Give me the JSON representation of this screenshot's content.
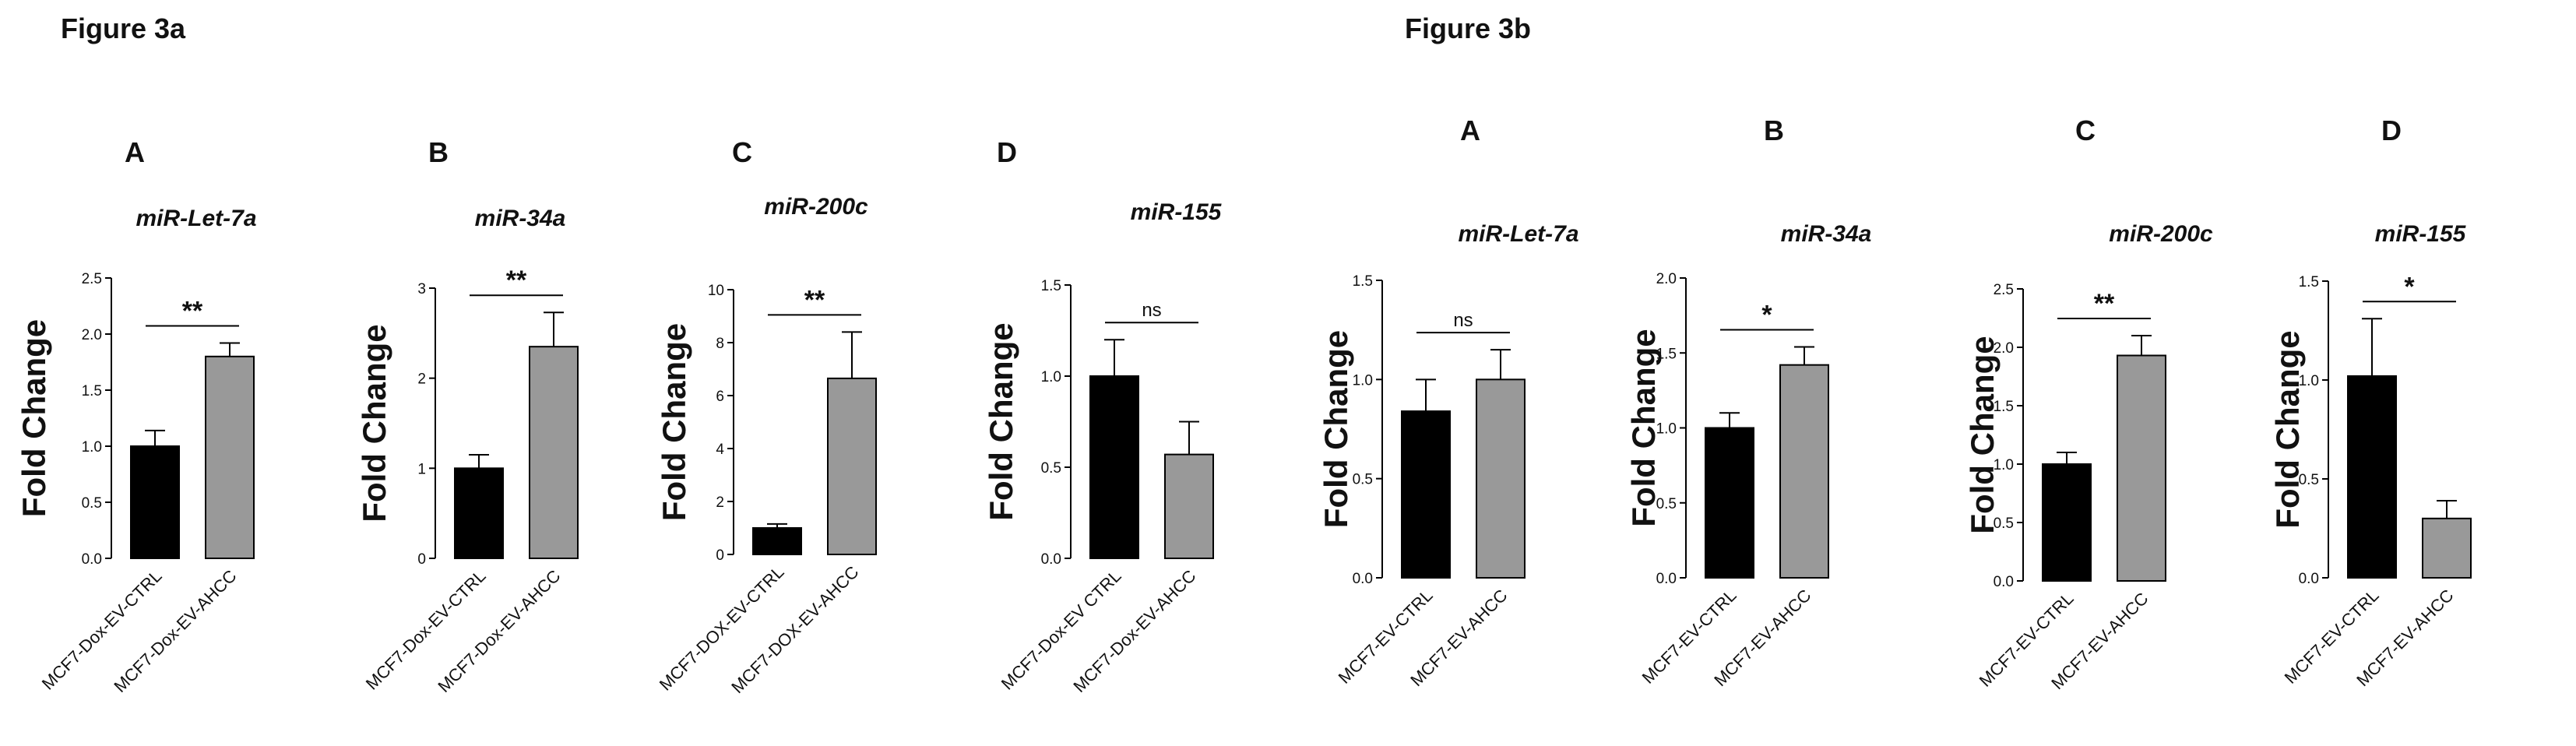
{
  "figures": {
    "fig3a_title": "Figure 3a",
    "fig3b_title": "Figure 3b"
  },
  "colors": {
    "ctrl_bar": "#000000",
    "ahcc_bar": "#999999",
    "axis": "#000000"
  },
  "chart_data": [
    {
      "type": "bar",
      "figure": "Figure 3a",
      "panel": "A",
      "title": "miR-Let-7a",
      "ylabel": "Fold Change",
      "ylim": [
        0,
        2.5
      ],
      "yticks": [
        "0.0",
        "0.5",
        "1.0",
        "1.5",
        "2.0",
        "2.5"
      ],
      "categories": [
        "MCF7-Dox-EV-CTRL",
        "MCF7-Dox-EV-AHCC"
      ],
      "values": [
        1.0,
        1.8
      ],
      "errors": [
        0.14,
        0.12
      ],
      "significance": "**"
    },
    {
      "type": "bar",
      "figure": "Figure 3a",
      "panel": "B",
      "title": "miR-34a",
      "ylabel": "Fold Change",
      "ylim": [
        0,
        3
      ],
      "yticks": [
        "0",
        "1",
        "2",
        "3"
      ],
      "categories": [
        "MCF7-Dox-EV-CTRL",
        "MCF7-Dox-EV-AHCC"
      ],
      "values": [
        1.0,
        2.35
      ],
      "errors": [
        0.15,
        0.38
      ],
      "significance": "**"
    },
    {
      "type": "bar",
      "figure": "Figure 3a",
      "panel": "C",
      "title": "miR-200c",
      "ylabel": "Fold Change",
      "ylim": [
        0,
        10
      ],
      "yticks": [
        "0",
        "2",
        "4",
        "6",
        "8",
        "10"
      ],
      "categories": [
        "MCF7-DOX-EV-CTRL",
        "MCF7-DOX-EV-AHCC"
      ],
      "values": [
        1.0,
        6.65
      ],
      "errors": [
        0.15,
        1.75
      ],
      "significance": "**"
    },
    {
      "type": "bar",
      "figure": "Figure 3a",
      "panel": "D",
      "title": "miR-155",
      "ylabel": "Fold Change",
      "ylim": [
        0,
        1.5
      ],
      "yticks": [
        "0.0",
        "0.5",
        "1.0",
        "1.5"
      ],
      "categories": [
        "MCF7-Dox-EV CTRL",
        "MCF7-Dox-EV-AHCC"
      ],
      "values": [
        1.0,
        0.57
      ],
      "errors": [
        0.2,
        0.18
      ],
      "significance": "ns"
    },
    {
      "type": "bar",
      "figure": "Figure 3b",
      "panel": "A",
      "title": "miR-Let-7a",
      "ylabel": "Fold Change",
      "ylim": [
        0,
        1.5
      ],
      "yticks": [
        "0.0",
        "0.5",
        "1.0",
        "1.5"
      ],
      "categories": [
        "MCF7-EV-CTRL",
        "MCF7-EV-AHCC"
      ],
      "values": [
        0.84,
        1.0
      ],
      "errors": [
        0.16,
        0.15
      ],
      "significance": "ns"
    },
    {
      "type": "bar",
      "figure": "Figure 3b",
      "panel": "B",
      "title": "miR-34a",
      "ylabel": "Fold Change",
      "ylim": [
        0,
        2.0
      ],
      "yticks": [
        "0.0",
        "0.5",
        "1.0",
        "1.5",
        "2.0"
      ],
      "categories": [
        "MCF7-EV-CTRL",
        "MCF7-EV-AHCC"
      ],
      "values": [
        1.0,
        1.42
      ],
      "errors": [
        0.1,
        0.12
      ],
      "significance": "*"
    },
    {
      "type": "bar",
      "figure": "Figure 3b",
      "panel": "C",
      "title": "miR-200c",
      "ylabel": "Fold Change",
      "ylim": [
        0,
        2.5
      ],
      "yticks": [
        "0.0",
        "0.5",
        "1.0",
        "1.5",
        "2.0",
        "2.5"
      ],
      "categories": [
        "MCF7-EV-CTRL",
        "MCF7-EV-AHCC"
      ],
      "values": [
        1.0,
        1.93
      ],
      "errors": [
        0.1,
        0.17
      ],
      "significance": "**"
    },
    {
      "type": "bar",
      "figure": "Figure 3b",
      "panel": "D",
      "title": "miR-155",
      "ylabel": "Fold Change",
      "ylim": [
        0,
        1.5
      ],
      "yticks": [
        "0.0",
        "0.5",
        "1.0",
        "1.5"
      ],
      "categories": [
        "MCF7-EV-CTRL",
        "MCF7-EV-AHCC"
      ],
      "values": [
        1.02,
        0.3
      ],
      "errors": [
        0.29,
        0.09
      ],
      "significance": "*"
    }
  ]
}
